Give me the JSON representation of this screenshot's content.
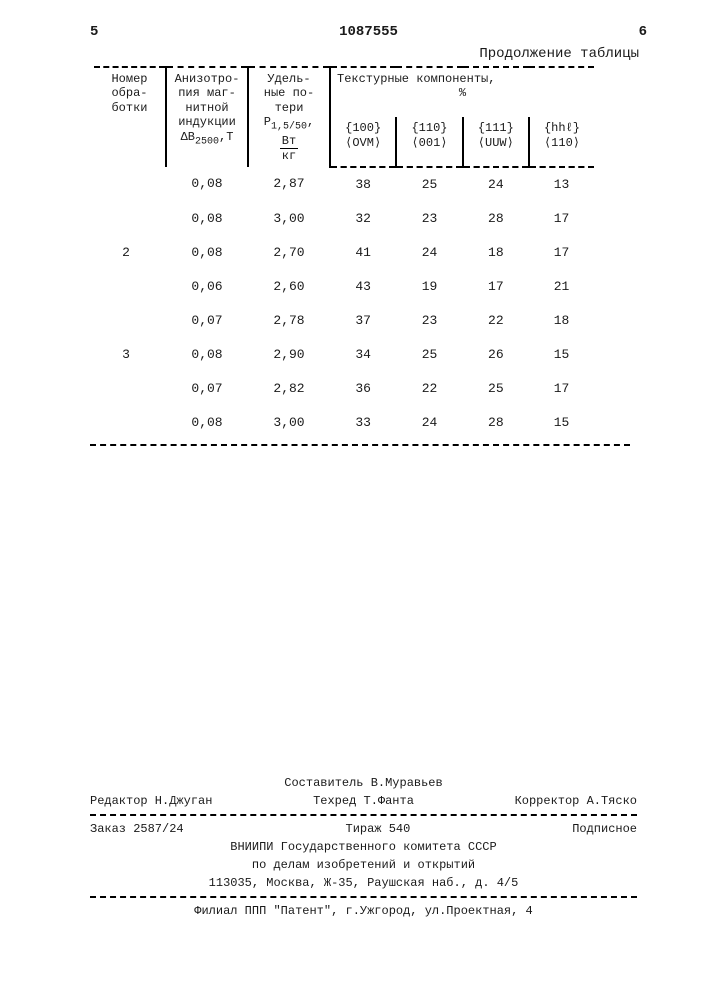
{
  "page_left_num": "5",
  "doc_number": "1087555",
  "page_right_num": "6",
  "table_caption": "Продолжение таблицы",
  "headers": {
    "col1": "Номер обра-ботки",
    "col2_l1": "Анизотро-",
    "col2_l2": "пия маг-",
    "col2_l3": "нитной",
    "col2_l4": "индукции",
    "col2_l5a": "ΔB",
    "col2_l5b": "2500",
    "col2_l5c": ",Т",
    "col3_l1": "Удель-",
    "col3_l2": "ные по-",
    "col3_l3": "тери",
    "col3_l4a": "P",
    "col3_l4b": "1,5/50",
    "col3_l4c": ",",
    "col3_fr_top": "Вт",
    "col3_fr_bot": "кг",
    "col4_span": "Текстурные компоненты,",
    "col4_span2": "%",
    "sub1a": "{100}",
    "sub1b": "⟨OVM⟩",
    "sub2a": "{110}",
    "sub2b": "⟨001⟩",
    "sub3a": "{111}",
    "sub3b": "⟨UUW⟩",
    "sub4a": "{hhℓ}",
    "sub4b": "⟨110⟩"
  },
  "rows": [
    {
      "n": "",
      "a": "0,08",
      "p": "2,87",
      "c1": "38",
      "c2": "25",
      "c3": "24",
      "c4": "13"
    },
    {
      "n": "",
      "a": "0,08",
      "p": "3,00",
      "c1": "32",
      "c2": "23",
      "c3": "28",
      "c4": "17"
    },
    {
      "n": "2",
      "a": "0,08",
      "p": "2,70",
      "c1": "41",
      "c2": "24",
      "c3": "18",
      "c4": "17"
    },
    {
      "n": "",
      "a": "0,06",
      "p": "2,60",
      "c1": "43",
      "c2": "19",
      "c3": "17",
      "c4": "21"
    },
    {
      "n": "",
      "a": "0,07",
      "p": "2,78",
      "c1": "37",
      "c2": "23",
      "c3": "22",
      "c4": "18"
    },
    {
      "n": "3",
      "a": "0,08",
      "p": "2,90",
      "c1": "34",
      "c2": "25",
      "c3": "26",
      "c4": "15"
    },
    {
      "n": "",
      "a": "0,07",
      "p": "2,82",
      "c1": "36",
      "c2": "22",
      "c3": "25",
      "c4": "17"
    },
    {
      "n": "",
      "a": "0,08",
      "p": "3,00",
      "c1": "33",
      "c2": "24",
      "c3": "28",
      "c4": "15"
    }
  ],
  "footer": {
    "compiler": "Составитель В.Муравьев",
    "editor": "Редактор Н.Джуган",
    "tech": "Техред Т.Фанта",
    "corrector": "Корректор А.Тяско",
    "order": "Заказ 2587/24",
    "tirazh": "Тираж 540",
    "subscr": "Подписное",
    "org1": "ВНИИПИ Государственного комитета СССР",
    "org2": "по делам изобретений и открытий",
    "addr": "113035, Москва, Ж-35, Раушская наб., д. 4/5",
    "branch": "Филиал ППП \"Патент\", г.Ужгород, ул.Проектная, 4"
  }
}
